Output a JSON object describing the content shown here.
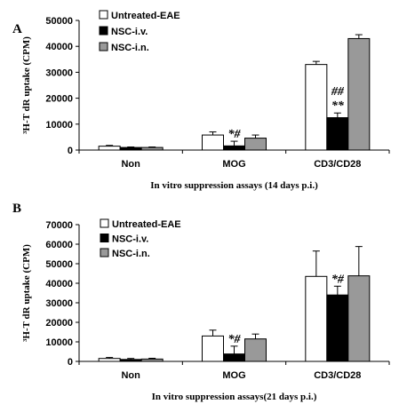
{
  "chart_data": [
    {
      "type": "bar",
      "panel": "A",
      "categories": [
        "Non",
        "MOG",
        "CD3/CD28"
      ],
      "series": [
        {
          "name": "Untreated-EAE",
          "values": [
            1500,
            5800,
            33000
          ],
          "errors": [
            300,
            1200,
            1200
          ]
        },
        {
          "name": "NSC-i.v.",
          "values": [
            1000,
            1600,
            12500
          ],
          "errors": [
            200,
            1800,
            1800
          ]
        },
        {
          "name": "NSC-i.n.",
          "values": [
            1000,
            4600,
            43000
          ],
          "errors": [
            200,
            1200,
            1500
          ]
        }
      ],
      "ylabel": "³H-T dR uptake (CPM)",
      "xlabel": "In vitro suppression assays (14 days p.i.)",
      "ylim": [
        0,
        50000
      ],
      "yticks": [
        "0",
        "10000",
        "20000",
        "30000",
        "40000",
        "50000"
      ],
      "annotations": [
        {
          "category": "MOG",
          "series": "NSC-i.v.",
          "lines": [
            "*#"
          ]
        },
        {
          "category": "CD3/CD28",
          "series": "NSC-i.v.",
          "lines": [
            "##",
            "**"
          ]
        }
      ],
      "legend_position": "top-right",
      "grid": false
    },
    {
      "type": "bar",
      "panel": "B",
      "categories": [
        "Non",
        "MOG",
        "CD3/CD28"
      ],
      "series": [
        {
          "name": "Untreated-EAE",
          "values": [
            1500,
            13000,
            43500
          ],
          "errors": [
            500,
            3000,
            13000
          ]
        },
        {
          "name": "NSC-i.v.",
          "values": [
            1000,
            3800,
            34000
          ],
          "errors": [
            500,
            4000,
            4500
          ]
        },
        {
          "name": "NSC-i.n.",
          "values": [
            1200,
            11500,
            43800
          ],
          "errors": [
            400,
            2500,
            15000
          ]
        }
      ],
      "ylabel": "³H-T dR uptake (CPM)",
      "xlabel": "In vitro suppression assays(21 days p.i.)",
      "ylim": [
        0,
        70000
      ],
      "yticks": [
        "0",
        "10000",
        "20000",
        "30000",
        "40000",
        "50000",
        "60000",
        "70000"
      ],
      "annotations": [
        {
          "category": "MOG",
          "series": "NSC-i.v.",
          "lines": [
            "*#"
          ]
        },
        {
          "category": "CD3/CD28",
          "series": "NSC-i.v.",
          "lines": [
            "*#"
          ]
        }
      ],
      "legend_position": "top-left",
      "grid": false
    }
  ],
  "colors": {
    "Untreated-EAE": "#ffffff",
    "NSC-i.v.": "#000000",
    "NSC-i.n.": "#999999"
  }
}
